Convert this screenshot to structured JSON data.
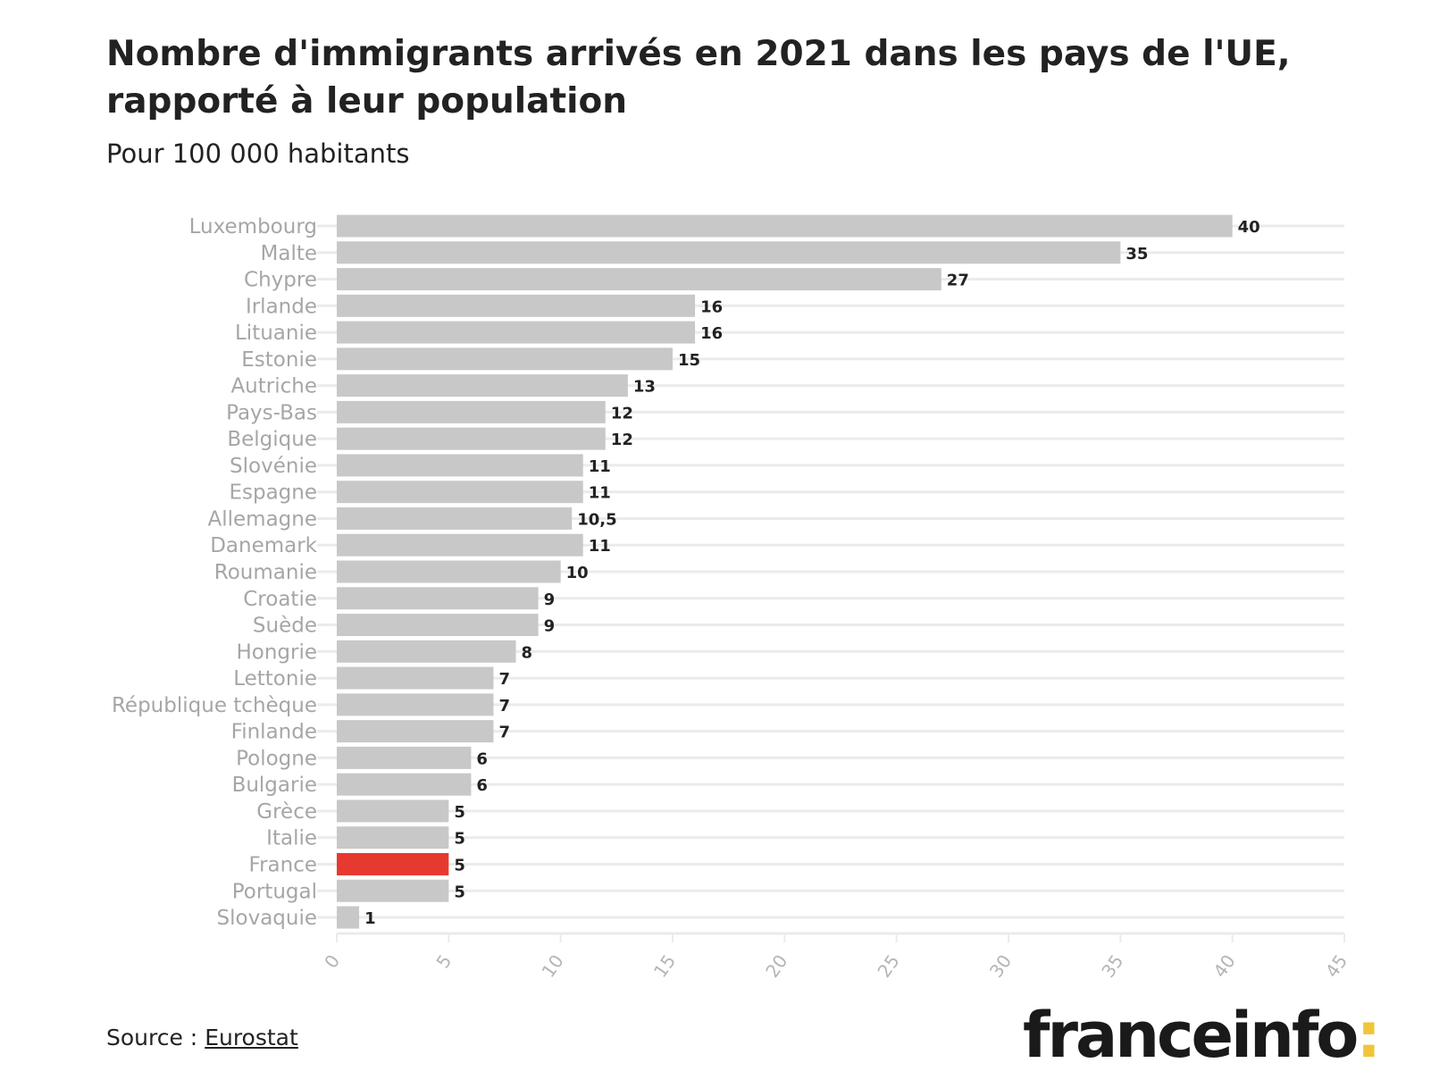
{
  "chart_data": {
    "type": "bar",
    "orientation": "horizontal",
    "title": "Nombre d'immigrants arrivés en 2021 dans les pays de l'UE, rapporté à leur population",
    "subtitle": "Pour 100 000 habitants",
    "xlabel": "",
    "ylabel": "",
    "xlim": [
      0,
      45
    ],
    "xticks": [
      "0",
      "5",
      "10",
      "15",
      "20",
      "25",
      "30",
      "35",
      "40",
      "45"
    ],
    "grid": true,
    "categories": [
      "Luxembourg",
      "Malte",
      "Chypre",
      "Irlande",
      "Lituanie",
      "Estonie",
      "Autriche",
      "Pays-Bas",
      "Belgique",
      "Slovénie",
      "Espagne",
      "Allemagne",
      "Danemark",
      "Roumanie",
      "Croatie",
      "Suède",
      "Hongrie",
      "Lettonie",
      "République tchèque",
      "Finlande",
      "Pologne",
      "Bulgarie",
      "Grèce",
      "Italie",
      "France",
      "Portugal",
      "Slovaquie"
    ],
    "values": [
      40,
      35,
      27,
      16,
      16,
      15,
      13,
      12,
      12,
      11,
      11,
      10.5,
      11,
      10,
      9,
      9,
      8,
      7,
      7,
      7,
      6,
      6,
      5,
      5,
      5,
      5,
      1
    ],
    "value_labels": [
      "40",
      "35",
      "27",
      "16",
      "16",
      "15",
      "13",
      "12",
      "12",
      "11",
      "11",
      "10,5",
      "11",
      "10",
      "9",
      "9",
      "8",
      "7",
      "7",
      "7",
      "6",
      "6",
      "5",
      "5",
      "5",
      "5",
      "1"
    ],
    "highlight": "France",
    "colors": {
      "bar": "#c8c8c8",
      "highlight": "#e63a30",
      "grid": "#ebebeb",
      "label": "#a6a6a6",
      "value": "#222222"
    }
  },
  "footer": {
    "source_prefix": "Source : ",
    "source_link": "Eurostat",
    "logo": "franceinfo",
    "logo_colon": ":"
  }
}
